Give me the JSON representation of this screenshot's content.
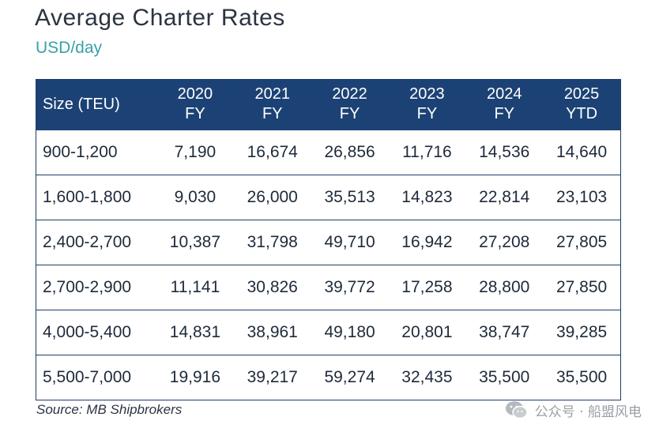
{
  "title": "Average Charter Rates",
  "subtitle": "USD/day",
  "source": "Source: MB Shipbrokers",
  "watermark": "公众号 · 船盟风电",
  "colors": {
    "header_bg": "#1c4275",
    "subtitle": "#3aa0a8",
    "border": "#1d3d6b"
  },
  "chart_data": {
    "type": "table",
    "title": "Average Charter Rates",
    "subtitle": "USD/day",
    "columns": [
      {
        "line1": "Size (TEU)",
        "line2": ""
      },
      {
        "line1": "2020",
        "line2": "FY"
      },
      {
        "line1": "2021",
        "line2": "FY"
      },
      {
        "line1": "2022",
        "line2": "FY"
      },
      {
        "line1": "2023",
        "line2": "FY"
      },
      {
        "line1": "2024",
        "line2": "FY"
      },
      {
        "line1": "2025",
        "line2": "YTD"
      }
    ],
    "rows": [
      [
        "900-1,200",
        "7,190",
        "16,674",
        "26,856",
        "11,716",
        "14,536",
        "14,640"
      ],
      [
        "1,600-1,800",
        "9,030",
        "26,000",
        "35,513",
        "14,823",
        "22,814",
        "23,103"
      ],
      [
        "2,400-2,700",
        "10,387",
        "31,798",
        "49,710",
        "16,942",
        "27,208",
        "27,805"
      ],
      [
        "2,700-2,900",
        "11,141",
        "30,826",
        "39,772",
        "17,258",
        "28,800",
        "27,850"
      ],
      [
        "4,000-5,400",
        "14,831",
        "38,961",
        "49,180",
        "20,801",
        "38,747",
        "39,285"
      ],
      [
        "5,500-7,000",
        "19,916",
        "39,217",
        "59,274",
        "32,435",
        "35,500",
        "35,500"
      ]
    ]
  }
}
